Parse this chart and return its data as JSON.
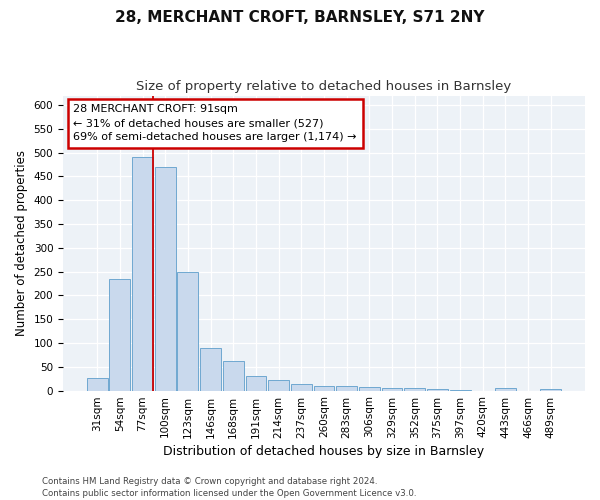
{
  "title": "28, MERCHANT CROFT, BARNSLEY, S71 2NY",
  "subtitle": "Size of property relative to detached houses in Barnsley",
  "xlabel": "Distribution of detached houses by size in Barnsley",
  "ylabel": "Number of detached properties",
  "categories": [
    "31sqm",
    "54sqm",
    "77sqm",
    "100sqm",
    "123sqm",
    "146sqm",
    "168sqm",
    "191sqm",
    "214sqm",
    "237sqm",
    "260sqm",
    "283sqm",
    "306sqm",
    "329sqm",
    "352sqm",
    "375sqm",
    "397sqm",
    "420sqm",
    "443sqm",
    "466sqm",
    "489sqm"
  ],
  "values": [
    26,
    235,
    490,
    470,
    250,
    90,
    63,
    30,
    22,
    14,
    10,
    9,
    7,
    5,
    5,
    3,
    2,
    0,
    5,
    0,
    4
  ],
  "bar_color": "#c9d9ed",
  "bar_edge_color": "#6fa8d0",
  "annotation_text": "28 MERCHANT CROFT: 91sqm\n← 31% of detached houses are smaller (527)\n69% of semi-detached houses are larger (1,174) →",
  "annotation_box_facecolor": "#ffffff",
  "annotation_box_edgecolor": "#cc0000",
  "red_line_color": "#cc0000",
  "footer_line1": "Contains HM Land Registry data © Crown copyright and database right 2024.",
  "footer_line2": "Contains public sector information licensed under the Open Government Licence v3.0.",
  "plot_bg_color": "#edf2f7",
  "ylim": [
    0,
    620
  ],
  "yticks": [
    0,
    50,
    100,
    150,
    200,
    250,
    300,
    350,
    400,
    450,
    500,
    550,
    600
  ],
  "title_fontsize": 11,
  "subtitle_fontsize": 9.5,
  "tick_fontsize": 7.5,
  "ylabel_fontsize": 8.5,
  "xlabel_fontsize": 9,
  "annotation_fontsize": 8,
  "footer_fontsize": 6.2
}
